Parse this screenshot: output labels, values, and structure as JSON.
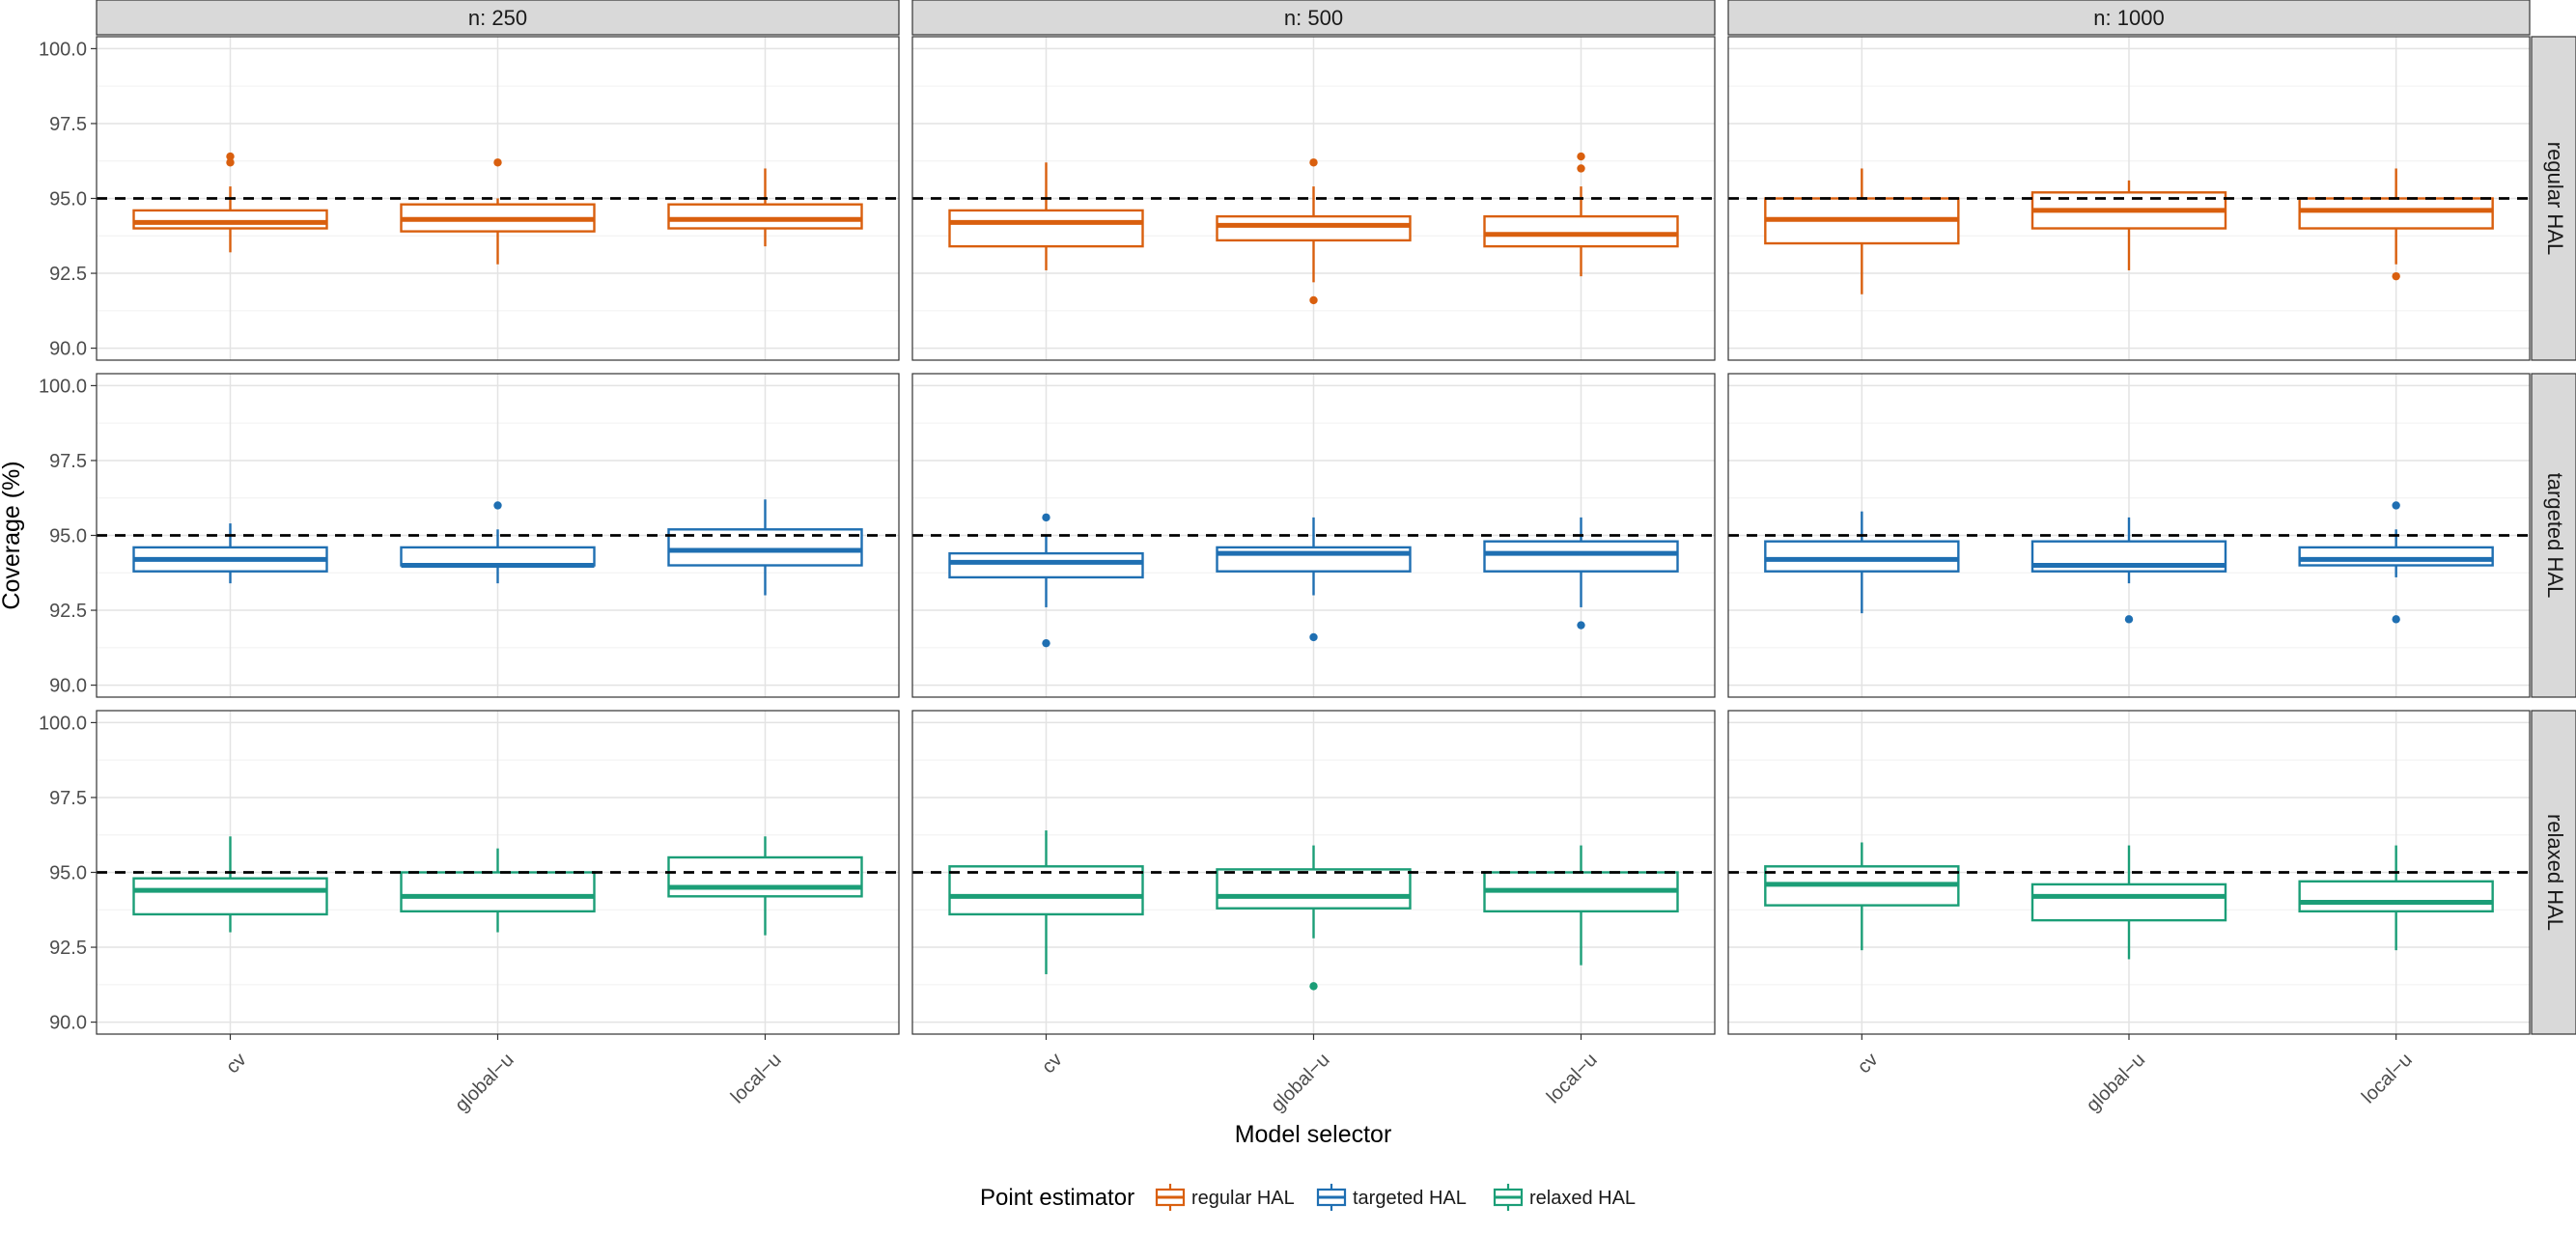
{
  "chart_data": {
    "type": "boxplot",
    "title": "",
    "xlabel": "Model selector",
    "ylabel": "Coverage (%)",
    "ylim": [
      89.6,
      100.4
    ],
    "y_ticks": [
      90.0,
      92.5,
      95.0,
      97.5,
      100.0
    ],
    "y_tick_labels": [
      "90.0",
      "92.5",
      "95.0",
      "97.5",
      "100.0"
    ],
    "reference_line": 95.0,
    "grid": true,
    "x_categories": [
      "cv",
      "global−u",
      "local−u"
    ],
    "column_facets": [
      "n: 250",
      "n: 500",
      "n: 1000"
    ],
    "row_facets": [
      "regular HAL",
      "targeted HAL",
      "relaxed HAL"
    ],
    "series_colors": {
      "regular HAL": "#d95f0e",
      "targeted HAL": "#1f6fb2",
      "relaxed HAL": "#1b9e77"
    },
    "legend": {
      "title": "Point estimator",
      "position": "bottom",
      "items": [
        "regular HAL",
        "targeted HAL",
        "relaxed HAL"
      ]
    },
    "panels": [
      {
        "row": "regular HAL",
        "col": "n: 250",
        "boxes": [
          {
            "x": "cv",
            "lower_whisker": 93.2,
            "q1": 94.0,
            "median": 94.2,
            "q3": 94.6,
            "upper_whisker": 95.4,
            "outliers": [
              96.2,
              96.4
            ]
          },
          {
            "x": "global−u",
            "lower_whisker": 92.8,
            "q1": 93.9,
            "median": 94.3,
            "q3": 94.8,
            "upper_whisker": 95.0,
            "outliers": [
              96.2
            ]
          },
          {
            "x": "local−u",
            "lower_whisker": 93.4,
            "q1": 94.0,
            "median": 94.3,
            "q3": 94.8,
            "upper_whisker": 96.0,
            "outliers": []
          }
        ]
      },
      {
        "row": "regular HAL",
        "col": "n: 500",
        "boxes": [
          {
            "x": "cv",
            "lower_whisker": 92.6,
            "q1": 93.4,
            "median": 94.2,
            "q3": 94.6,
            "upper_whisker": 96.2,
            "outliers": []
          },
          {
            "x": "global−u",
            "lower_whisker": 92.2,
            "q1": 93.6,
            "median": 94.1,
            "q3": 94.4,
            "upper_whisker": 95.4,
            "outliers": [
              96.2,
              91.6
            ]
          },
          {
            "x": "local−u",
            "lower_whisker": 92.4,
            "q1": 93.4,
            "median": 93.8,
            "q3": 94.4,
            "upper_whisker": 95.4,
            "outliers": [
              96.0,
              96.4
            ]
          }
        ]
      },
      {
        "row": "regular HAL",
        "col": "n: 1000",
        "boxes": [
          {
            "x": "cv",
            "lower_whisker": 91.8,
            "q1": 93.5,
            "median": 94.3,
            "q3": 95.0,
            "upper_whisker": 96.0,
            "outliers": []
          },
          {
            "x": "global−u",
            "lower_whisker": 92.6,
            "q1": 94.0,
            "median": 94.6,
            "q3": 95.2,
            "upper_whisker": 95.6,
            "outliers": []
          },
          {
            "x": "local−u",
            "lower_whisker": 92.8,
            "q1": 94.0,
            "median": 94.6,
            "q3": 95.0,
            "upper_whisker": 96.0,
            "outliers": [
              92.4
            ]
          }
        ]
      },
      {
        "row": "targeted HAL",
        "col": "n: 250",
        "boxes": [
          {
            "x": "cv",
            "lower_whisker": 93.4,
            "q1": 93.8,
            "median": 94.2,
            "q3": 94.6,
            "upper_whisker": 95.4,
            "outliers": []
          },
          {
            "x": "global−u",
            "lower_whisker": 93.4,
            "q1": 94.0,
            "median": 94.0,
            "q3": 94.6,
            "upper_whisker": 95.2,
            "outliers": [
              96.0
            ]
          },
          {
            "x": "local−u",
            "lower_whisker": 93.0,
            "q1": 94.0,
            "median": 94.5,
            "q3": 95.2,
            "upper_whisker": 96.2,
            "outliers": []
          }
        ]
      },
      {
        "row": "targeted HAL",
        "col": "n: 500",
        "boxes": [
          {
            "x": "cv",
            "lower_whisker": 92.6,
            "q1": 93.6,
            "median": 94.1,
            "q3": 94.4,
            "upper_whisker": 95.0,
            "outliers": [
              95.6,
              91.4
            ]
          },
          {
            "x": "global−u",
            "lower_whisker": 93.0,
            "q1": 93.8,
            "median": 94.4,
            "q3": 94.6,
            "upper_whisker": 95.6,
            "outliers": [
              91.6
            ]
          },
          {
            "x": "local−u",
            "lower_whisker": 92.6,
            "q1": 93.8,
            "median": 94.4,
            "q3": 94.8,
            "upper_whisker": 95.6,
            "outliers": [
              92.0
            ]
          }
        ]
      },
      {
        "row": "targeted HAL",
        "col": "n: 1000",
        "boxes": [
          {
            "x": "cv",
            "lower_whisker": 92.4,
            "q1": 93.8,
            "median": 94.2,
            "q3": 94.8,
            "upper_whisker": 95.8,
            "outliers": []
          },
          {
            "x": "global−u",
            "lower_whisker": 93.4,
            "q1": 93.8,
            "median": 94.0,
            "q3": 94.8,
            "upper_whisker": 95.6,
            "outliers": [
              92.2
            ]
          },
          {
            "x": "local−u",
            "lower_whisker": 93.6,
            "q1": 94.0,
            "median": 94.2,
            "q3": 94.6,
            "upper_whisker": 95.2,
            "outliers": [
              96.0,
              92.2
            ]
          }
        ]
      },
      {
        "row": "relaxed HAL",
        "col": "n: 250",
        "boxes": [
          {
            "x": "cv",
            "lower_whisker": 93.0,
            "q1": 93.6,
            "median": 94.4,
            "q3": 94.8,
            "upper_whisker": 96.2,
            "outliers": []
          },
          {
            "x": "global−u",
            "lower_whisker": 93.0,
            "q1": 93.7,
            "median": 94.2,
            "q3": 95.0,
            "upper_whisker": 95.8,
            "outliers": []
          },
          {
            "x": "local−u",
            "lower_whisker": 92.9,
            "q1": 94.2,
            "median": 94.5,
            "q3": 95.5,
            "upper_whisker": 96.2,
            "outliers": []
          }
        ]
      },
      {
        "row": "relaxed HAL",
        "col": "n: 500",
        "boxes": [
          {
            "x": "cv",
            "lower_whisker": 91.6,
            "q1": 93.6,
            "median": 94.2,
            "q3": 95.2,
            "upper_whisker": 96.4,
            "outliers": []
          },
          {
            "x": "global−u",
            "lower_whisker": 92.8,
            "q1": 93.8,
            "median": 94.2,
            "q3": 95.1,
            "upper_whisker": 95.9,
            "outliers": [
              91.2
            ]
          },
          {
            "x": "local−u",
            "lower_whisker": 91.9,
            "q1": 93.7,
            "median": 94.4,
            "q3": 95.0,
            "upper_whisker": 95.9,
            "outliers": []
          }
        ]
      },
      {
        "row": "relaxed HAL",
        "col": "n: 1000",
        "boxes": [
          {
            "x": "cv",
            "lower_whisker": 92.4,
            "q1": 93.9,
            "median": 94.6,
            "q3": 95.2,
            "upper_whisker": 96.0,
            "outliers": []
          },
          {
            "x": "global−u",
            "lower_whisker": 92.1,
            "q1": 93.4,
            "median": 94.2,
            "q3": 94.6,
            "upper_whisker": 95.9,
            "outliers": []
          },
          {
            "x": "local−u",
            "lower_whisker": 92.4,
            "q1": 93.7,
            "median": 94.0,
            "q3": 94.7,
            "upper_whisker": 95.9,
            "outliers": []
          }
        ]
      }
    ]
  }
}
